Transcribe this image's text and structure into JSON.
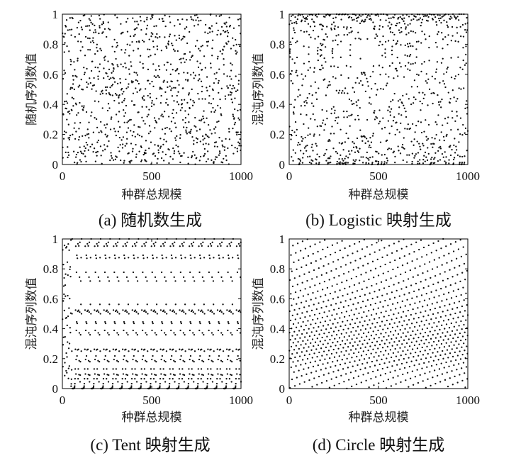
{
  "chart_data": [
    {
      "type": "scatter",
      "id": "a",
      "caption": "(a)  随机数生成",
      "xlabel": "种群总规模",
      "ylabel": "随机序列数值",
      "xlim": [
        0,
        1000
      ],
      "ylim": [
        0,
        1
      ],
      "xticks": [
        "0",
        "500",
        "1000"
      ],
      "yticks": [
        "0",
        "0.2",
        "0.4",
        "0.6",
        "0.8",
        "1"
      ],
      "grid": false,
      "n_points": 1000,
      "generator": "uniform random in [0,1]"
    },
    {
      "type": "scatter",
      "id": "b",
      "caption": "(b) Logistic 映射生成",
      "xlabel": "种群总规模",
      "ylabel": "混沌序列数值",
      "xlim": [
        0,
        1000
      ],
      "ylim": [
        0,
        1
      ],
      "xticks": [
        "0",
        "500",
        "1000"
      ],
      "yticks": [
        "0",
        "0.2",
        "0.4",
        "0.6",
        "0.8",
        "1"
      ],
      "grid": false,
      "n_points": 1000,
      "generator": "logistic map x(n+1) = 4·x(n)·(1 − x(n))",
      "x0": 0.37
    },
    {
      "type": "scatter",
      "id": "c",
      "caption": "(c) Tent 映射生成",
      "xlabel": "种群总规模",
      "ylabel": "混沌序列数值",
      "xlim": [
        0,
        1000
      ],
      "ylim": [
        0,
        1
      ],
      "xticks": [
        "0",
        "500",
        "1000"
      ],
      "yticks": [
        "0",
        "0.2",
        "0.4",
        "0.6",
        "0.8",
        "1"
      ],
      "grid": false,
      "n_points": 1000,
      "generator": "tent map x(n+1) = 2x(n) if x(n) < 0.5 else 2(1 − x(n))",
      "x0": 0.2317
    },
    {
      "type": "scatter",
      "id": "d",
      "caption": "(d) Circle 映射生成",
      "xlabel": "种群总规模",
      "ylabel": "混沌序列数值",
      "xlim": [
        0,
        1000
      ],
      "ylim": [
        0,
        1
      ],
      "xticks": [
        "0",
        "500",
        "1000"
      ],
      "yticks": [
        "0",
        "0.2",
        "0.4",
        "0.6",
        "0.8",
        "1"
      ],
      "grid": false,
      "n_points": 1000,
      "generator": "circle map x(n+1) = mod(x(n) + 0.2 − (0.5/2π)·sin(2π·x(n)), 1)",
      "x0": 0.1
    }
  ],
  "colors": {
    "marker": "#111111",
    "axes": "#000000",
    "background": "#ffffff"
  }
}
